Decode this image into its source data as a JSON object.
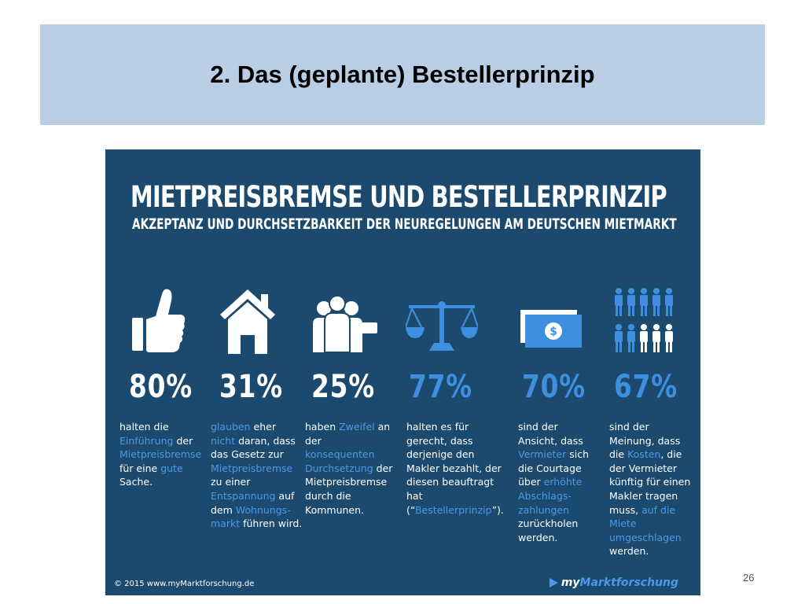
{
  "slide": {
    "title": "2. Das (geplante) Bestellerprinzip",
    "page_number": "26"
  },
  "infographic": {
    "title": "MIETPREISBREMSE UND BESTELLERPRINZIP",
    "subtitle": "AKZEPTANZ UND DURCHSETZBARKEIT DER NEUREGELUNGEN AM DEUTSCHEN MIETMARKT",
    "colors": {
      "background": "#1c4a6e",
      "accent": "#3e8fe0",
      "text": "#ffffff"
    },
    "stats": [
      {
        "icon": "thumbs-up-icon",
        "value": "80%",
        "value_color": "light",
        "parts": [
          {
            "t": "halten die ",
            "hl": false
          },
          {
            "t": "Einführung",
            "hl": true
          },
          {
            "t": " der ",
            "hl": false
          },
          {
            "t": "Mietpreisbremse",
            "hl": true
          },
          {
            "t": " für eine ",
            "hl": false
          },
          {
            "t": "gute",
            "hl": true
          },
          {
            "t": " Sache.",
            "hl": false
          }
        ]
      },
      {
        "icon": "house-icon",
        "value": "31%",
        "value_color": "light",
        "parts": [
          {
            "t": "glauben",
            "hl": true
          },
          {
            "t": " eher ",
            "hl": false
          },
          {
            "t": "nicht",
            "hl": true
          },
          {
            "t": " daran, dass das Gesetz zur ",
            "hl": false
          },
          {
            "t": "Mietpreisbremse",
            "hl": true
          },
          {
            "t": " zu einer ",
            "hl": false
          },
          {
            "t": "Entspannung",
            "hl": true
          },
          {
            "t": " auf dem ",
            "hl": false
          },
          {
            "t": "Wohnungs-markt",
            "hl": true
          },
          {
            "t": " führen wird.",
            "hl": false
          }
        ]
      },
      {
        "icon": "group-people-icon",
        "value": "25%",
        "value_color": "light",
        "parts": [
          {
            "t": "haben ",
            "hl": false
          },
          {
            "t": "Zweifel",
            "hl": true
          },
          {
            "t": " an der ",
            "hl": false
          },
          {
            "t": "konsequenten Durchsetzung",
            "hl": true
          },
          {
            "t": " der Mietpreisbremse durch die Kommunen.",
            "hl": false
          }
        ]
      },
      {
        "icon": "scales-icon",
        "value": "77%",
        "value_color": "blue",
        "parts": [
          {
            "t": "halten es für gerecht, dass derjenige den Makler bezahlt, der diesen beauftragt hat (“",
            "hl": false
          },
          {
            "t": "Bestellerprinzip",
            "hl": true
          },
          {
            "t": "”).",
            "hl": false
          }
        ]
      },
      {
        "icon": "money-bill-icon",
        "value": "70%",
        "value_color": "blue",
        "parts": [
          {
            "t": "sind der Ansicht, dass ",
            "hl": false
          },
          {
            "t": "Vermieter",
            "hl": true
          },
          {
            "t": " sich die Courtage über ",
            "hl": false
          },
          {
            "t": "erhöhte Abschlags-zahlungen",
            "hl": true
          },
          {
            "t": " zurückholen werden.",
            "hl": false
          }
        ]
      },
      {
        "icon": "people-grid-icon",
        "value": "67%",
        "value_color": "blue",
        "parts": [
          {
            "t": "sind der Meinung, dass die ",
            "hl": false
          },
          {
            "t": "Kosten",
            "hl": true
          },
          {
            "t": ", die der Vermieter künftig für einen Makler tragen muss, ",
            "hl": false
          },
          {
            "t": "auf die Miete umgeschlagen",
            "hl": true
          },
          {
            "t": " werden.",
            "hl": false
          }
        ]
      }
    ],
    "copyright": "© 2015 www.myMarktforschung.de",
    "brand_prefix": "my",
    "brand_rest": "Marktforschung"
  }
}
